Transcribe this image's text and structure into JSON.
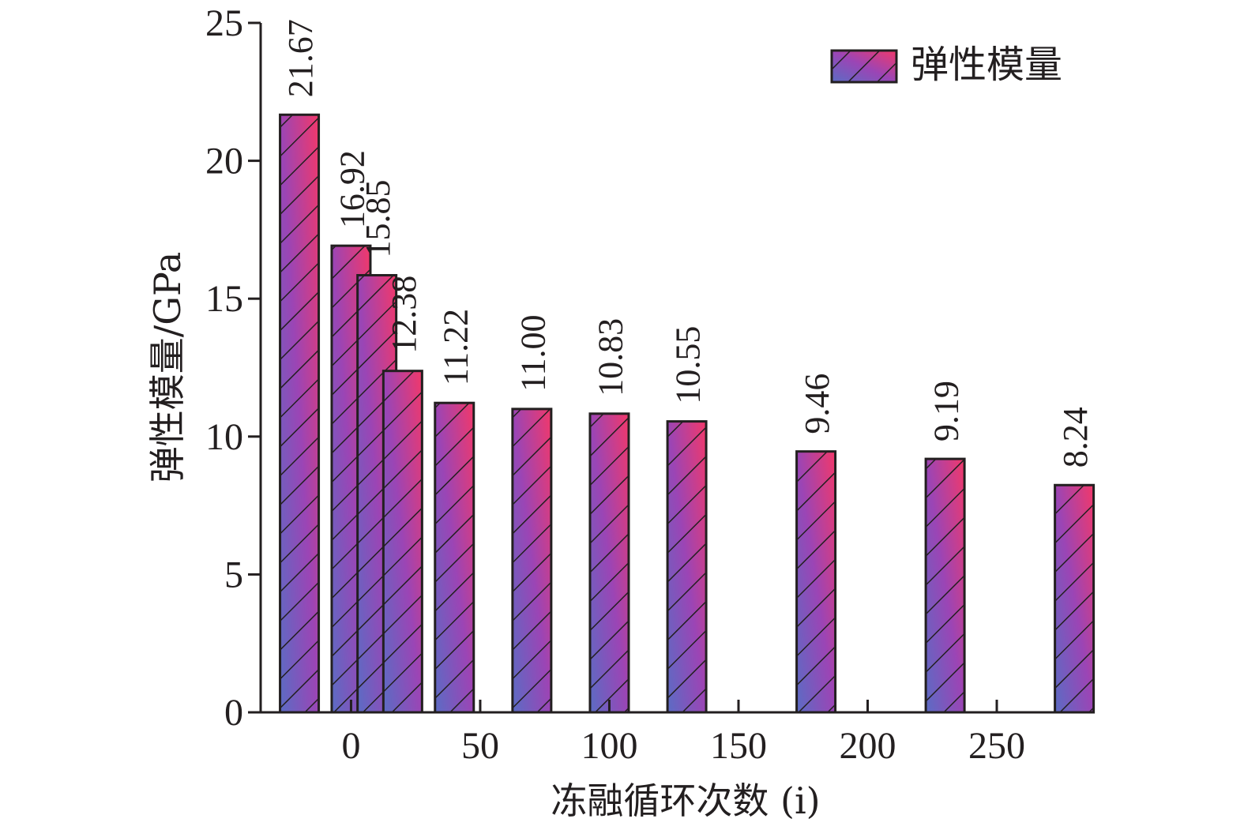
{
  "chart_data": {
    "type": "bar",
    "xlabel": "冻融循环次数 (i)",
    "ylabel": "弹性模量/GPa",
    "xlim": [
      -35,
      287
    ],
    "ylim": [
      0,
      25
    ],
    "xticks": [
      0,
      50,
      100,
      150,
      200,
      250
    ],
    "yticks": [
      0,
      5,
      10,
      15,
      20,
      25
    ],
    "grid": false,
    "legend_position": "top-right",
    "series": [
      {
        "name": "弹性模量",
        "x": [
          -20,
          0,
          10,
          20,
          40,
          70,
          100,
          130,
          180,
          230,
          280
        ],
        "values": [
          21.67,
          16.92,
          15.85,
          12.38,
          11.22,
          11.0,
          10.83,
          10.55,
          9.46,
          9.19,
          8.24
        ],
        "labels": [
          "21.67",
          "16.92",
          "15.85",
          "12.38",
          "11.22",
          "11.00",
          "10.83",
          "10.55",
          "9.46",
          "9.19",
          "8.24"
        ]
      }
    ],
    "colors": {
      "gradient_start": "#5b6cc4",
      "gradient_mid": "#9b45b5",
      "gradient_end": "#f2386a",
      "hatch": "#231f20",
      "axis": "#231f20"
    }
  }
}
